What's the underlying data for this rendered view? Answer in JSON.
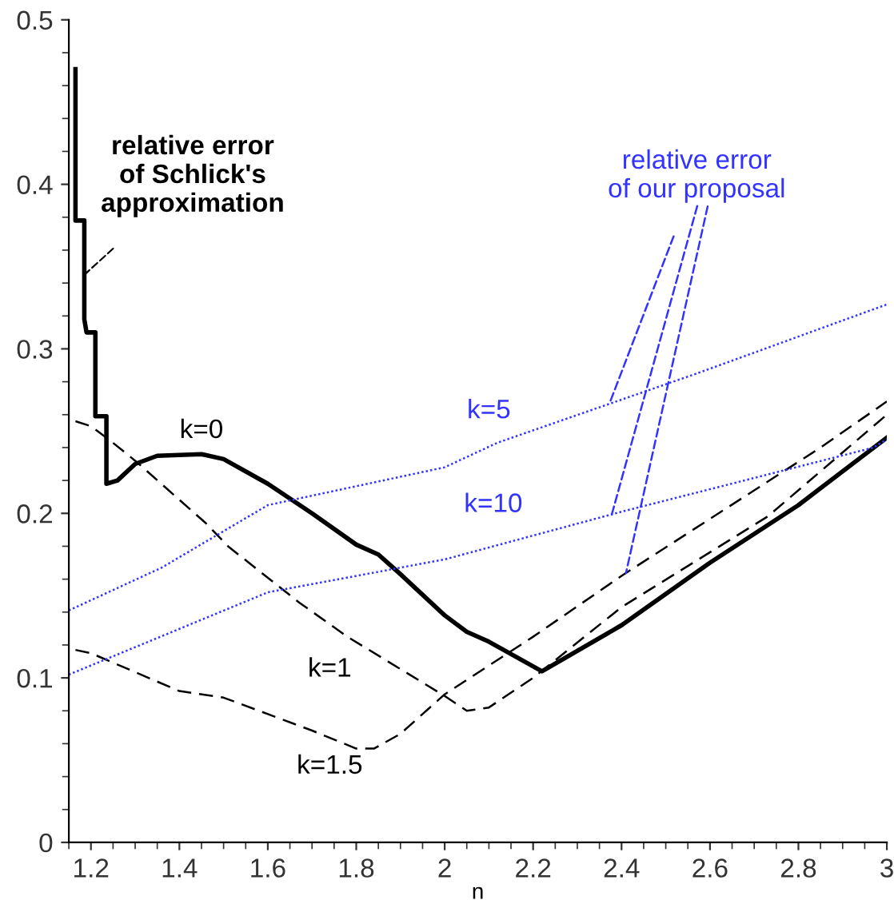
{
  "chart_data": {
    "type": "line",
    "xlabel": "n",
    "xlim": [
      1.15,
      3
    ],
    "ylim": [
      0,
      0.5
    ],
    "xticks": [
      1.2,
      1.4,
      1.6,
      1.8,
      2,
      2.2,
      2.4,
      2.6,
      2.8,
      3
    ],
    "yticks": [
      0,
      0.1,
      0.2,
      0.3,
      0.4,
      0.5
    ],
    "grid": false,
    "legend": false,
    "marker": "none",
    "series": [
      {
        "name": "k=0",
        "color": "#000000",
        "line_style": "solid",
        "x": [
          1.165,
          1.165,
          1.185,
          1.185,
          1.19,
          1.21,
          1.21,
          1.235,
          1.235,
          1.26,
          1.3,
          1.35,
          1.45,
          1.5,
          1.6,
          1.7,
          1.8,
          1.85,
          1.9,
          2.0,
          2.05,
          2.1,
          2.22,
          2.4,
          2.6,
          2.8,
          3.0
        ],
        "values": [
          0.47,
          0.378,
          0.378,
          0.318,
          0.31,
          0.31,
          0.259,
          0.259,
          0.218,
          0.22,
          0.23,
          0.235,
          0.236,
          0.233,
          0.218,
          0.2,
          0.181,
          0.175,
          0.163,
          0.138,
          0.128,
          0.122,
          0.104,
          0.132,
          0.17,
          0.205,
          0.246
        ]
      },
      {
        "name": "k=1",
        "color": "#000000",
        "line_style": "dashed",
        "x": [
          1.165,
          1.2,
          1.24,
          1.3,
          1.46,
          1.51,
          1.67,
          1.78,
          2.0,
          2.05,
          2.1,
          2.2,
          2.4,
          2.73,
          3.0
        ],
        "values": [
          0.256,
          0.253,
          0.245,
          0.232,
          0.194,
          0.18,
          0.146,
          0.125,
          0.089,
          0.08,
          0.082,
          0.1,
          0.143,
          0.198,
          0.26
        ]
      },
      {
        "name": "k=1.5",
        "color": "#000000",
        "line_style": "dashed",
        "x": [
          1.165,
          1.2,
          1.4,
          1.5,
          1.6,
          1.7,
          1.8,
          1.84,
          1.9,
          2.0,
          2.2,
          2.4,
          2.85,
          3.0
        ],
        "values": [
          0.117,
          0.115,
          0.092,
          0.088,
          0.078,
          0.068,
          0.057,
          0.057,
          0.066,
          0.09,
          0.125,
          0.162,
          0.24,
          0.268
        ]
      },
      {
        "name": "k=5",
        "color": "#3333ff",
        "line_style": "dotted",
        "x": [
          1.15,
          1.36,
          1.6,
          2.0,
          2.12,
          2.57,
          3.0
        ],
        "values": [
          0.141,
          0.167,
          0.205,
          0.228,
          0.243,
          0.285,
          0.327
        ]
      },
      {
        "name": "k=10",
        "color": "#3333ff",
        "line_style": "dotted",
        "x": [
          1.15,
          1.6,
          2.0,
          2.4,
          2.97,
          3.0
        ],
        "values": [
          0.102,
          0.152,
          0.172,
          0.201,
          0.24,
          0.245
        ]
      }
    ],
    "annotations": [
      {
        "text": "relative error\nof Schlick's\napproximation",
        "x": 1.185,
        "y": 0.345
      },
      {
        "text": "relative error\nof our proposal",
        "x": 2.373,
        "y": 0.267
      }
    ]
  }
}
